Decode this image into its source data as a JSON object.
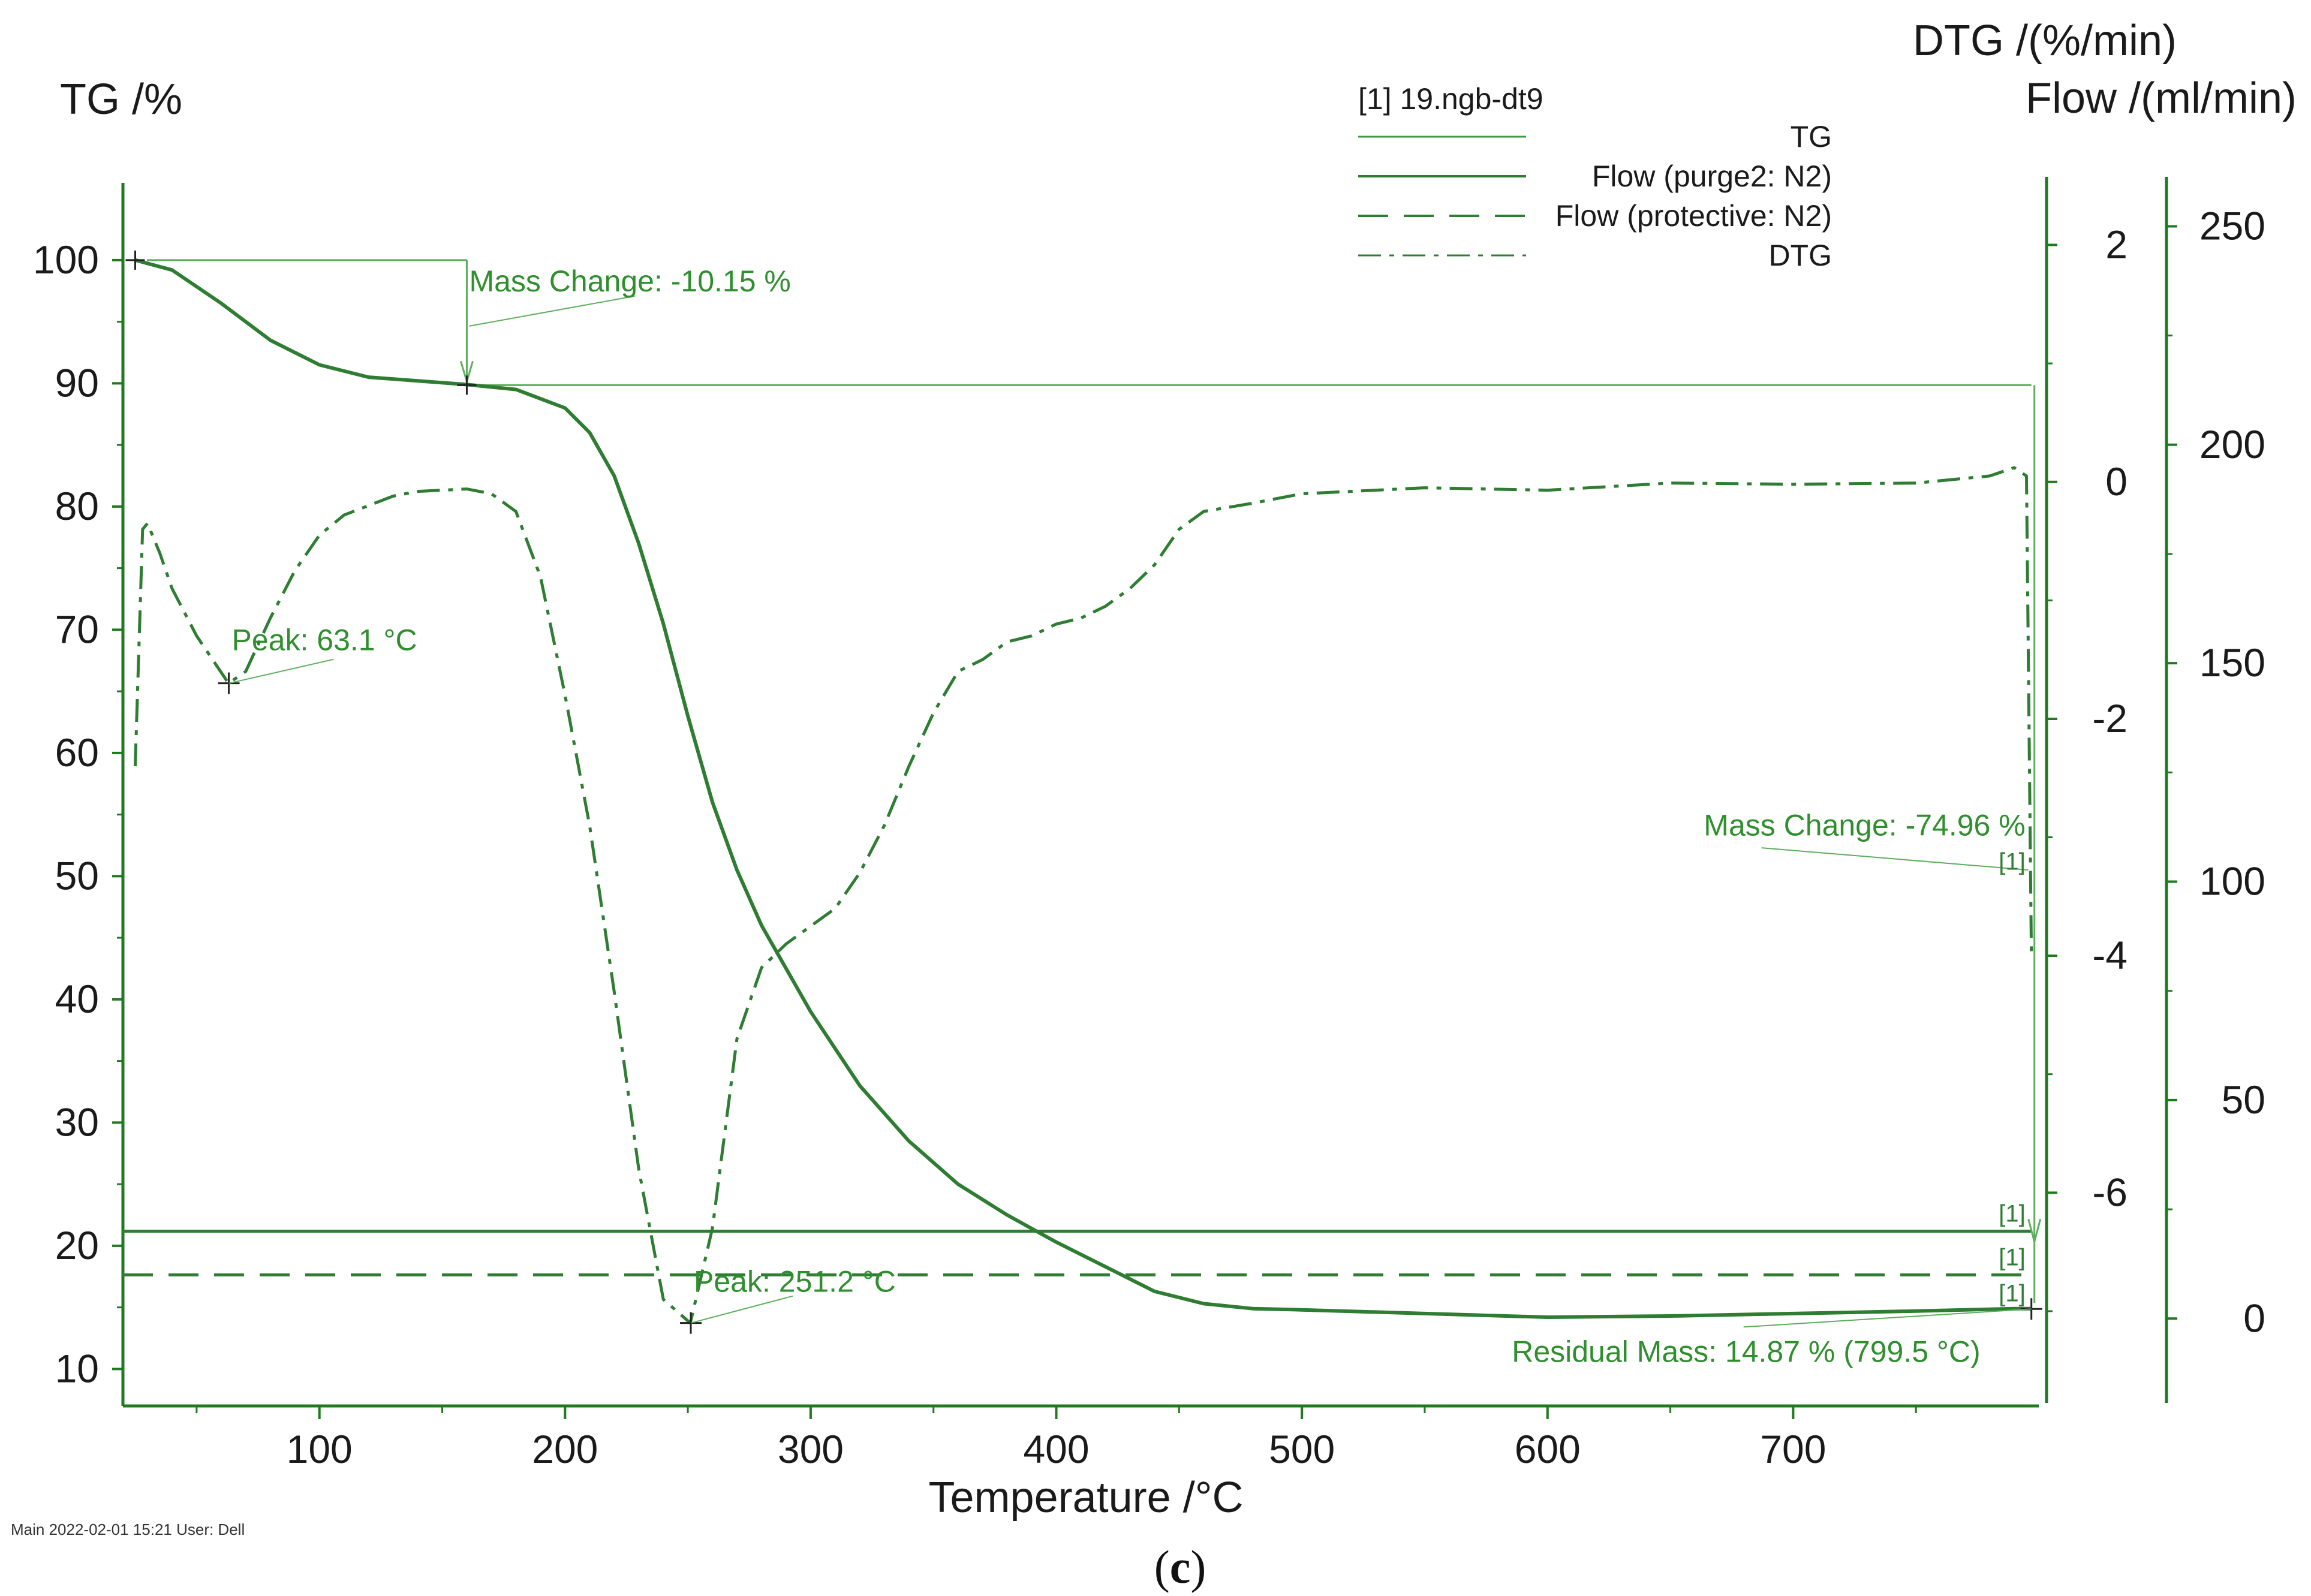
{
  "chart_data": {
    "type": "line",
    "panel_label": "(c)",
    "panel_letter": "c",
    "xlabel": "Temperature /°C",
    "xlim": [
      20,
      800
    ],
    "x_ticks": [
      100,
      200,
      300,
      400,
      500,
      600,
      700
    ],
    "y_left": {
      "label": "TG /%",
      "lim": [
        7,
        107
      ],
      "ticks": [
        10,
        20,
        30,
        40,
        50,
        60,
        70,
        80,
        90,
        100
      ]
    },
    "y_dtg": {
      "label": "DTG /(%/min)",
      "lim": [
        -7.8,
        2.6
      ],
      "ticks": [
        2,
        0,
        -2,
        -4,
        -6
      ]
    },
    "y_flow": {
      "label": "Flow /(ml/min)",
      "lim": [
        -20,
        262
      ],
      "ticks": [
        250,
        200,
        150,
        100,
        50,
        0
      ]
    },
    "legend": {
      "header": "[1]  19.ngb-dt9",
      "entries": [
        "TG",
        "Flow (purge2: N2)",
        "Flow (protective: N2)",
        "DTG"
      ]
    },
    "colors": {
      "series": "#2e7d32",
      "annotation": "#2f8f2f",
      "axis": "#1f7a1f",
      "text": "#1a1a1a"
    },
    "series": [
      {
        "name": "TG",
        "axis": "TG /%",
        "x": [
          25,
          40,
          60,
          80,
          100,
          120,
          140,
          160,
          180,
          200,
          210,
          220,
          230,
          240,
          250,
          260,
          270,
          280,
          290,
          300,
          320,
          340,
          360,
          380,
          400,
          420,
          440,
          460,
          480,
          500,
          550,
          600,
          650,
          700,
          750,
          790,
          797
        ],
        "y": [
          100,
          99.2,
          96.5,
          93.5,
          91.5,
          90.5,
          90.2,
          89.9,
          89.5,
          88,
          86,
          82.5,
          77,
          70.5,
          63,
          56,
          50.5,
          46,
          42.5,
          39,
          33,
          28.5,
          25,
          22.5,
          20.3,
          18.3,
          16.3,
          15.3,
          14.9,
          14.8,
          14.5,
          14.2,
          14.3,
          14.5,
          14.7,
          14.9,
          14.9
        ]
      },
      {
        "name": "DTG",
        "axis": "DTG /(%/min)",
        "x": [
          25,
          28,
          30,
          35,
          40,
          50,
          63,
          70,
          80,
          90,
          100,
          110,
          120,
          130,
          140,
          150,
          160,
          170,
          180,
          190,
          200,
          210,
          220,
          230,
          240,
          251,
          260,
          270,
          280,
          290,
          300,
          310,
          320,
          330,
          340,
          350,
          360,
          370,
          380,
          390,
          400,
          410,
          420,
          430,
          440,
          450,
          460,
          480,
          500,
          520,
          550,
          600,
          650,
          700,
          750,
          780,
          790,
          795,
          797
        ],
        "y": [
          -2.4,
          -0.4,
          -0.35,
          -0.6,
          -0.9,
          -1.3,
          -1.7,
          -1.6,
          -1.15,
          -0.75,
          -0.45,
          -0.28,
          -0.2,
          -0.12,
          -0.08,
          -0.07,
          -0.06,
          -0.1,
          -0.25,
          -0.8,
          -1.8,
          -2.9,
          -4.3,
          -5.8,
          -6.9,
          -7.1,
          -6.3,
          -4.7,
          -4.1,
          -3.9,
          -3.75,
          -3.6,
          -3.3,
          -2.9,
          -2.4,
          -1.95,
          -1.6,
          -1.5,
          -1.35,
          -1.3,
          -1.2,
          -1.15,
          -1.05,
          -0.9,
          -0.7,
          -0.4,
          -0.25,
          -0.18,
          -0.1,
          -0.08,
          -0.05,
          -0.07,
          -0.01,
          -0.02,
          -0.01,
          0.05,
          0.12,
          0.05,
          -4.0
        ]
      },
      {
        "name": "Flow (purge2: N2)",
        "axis": "Flow /(ml/min)",
        "x": [
          20,
          797
        ],
        "y": [
          20,
          20
        ]
      },
      {
        "name": "Flow (protective: N2)",
        "axis": "Flow /(ml/min)",
        "x": [
          20,
          797
        ],
        "y": [
          10,
          10
        ]
      }
    ],
    "annotations": {
      "mass_change_1": "Mass Change: -10.15 %",
      "peak_1": "Peak: 63.1 °C",
      "peak_2": "Peak: 251.2 °C",
      "mass_change_2": "Mass Change: -74.96 %",
      "residual": "Residual Mass: 14.87 % (799.5 °C)",
      "curve_marker": "[1]"
    },
    "annotation_values": {
      "mass_change_1": {
        "x_start": 20,
        "x_end": 160,
        "y_top": 100,
        "y_bottom": 89.85
      },
      "peak_1": {
        "x": 63.1,
        "dtg": -1.7
      },
      "peak_2": {
        "x": 251.2,
        "dtg": -7.1
      },
      "mass_change_2": {
        "x": 797,
        "y_top": 89.85,
        "y_bottom": 14.87
      },
      "residual": {
        "x": 799.5,
        "y": 14.87
      }
    },
    "footer": "Main   2022-02-01 15:21   User: Dell"
  }
}
